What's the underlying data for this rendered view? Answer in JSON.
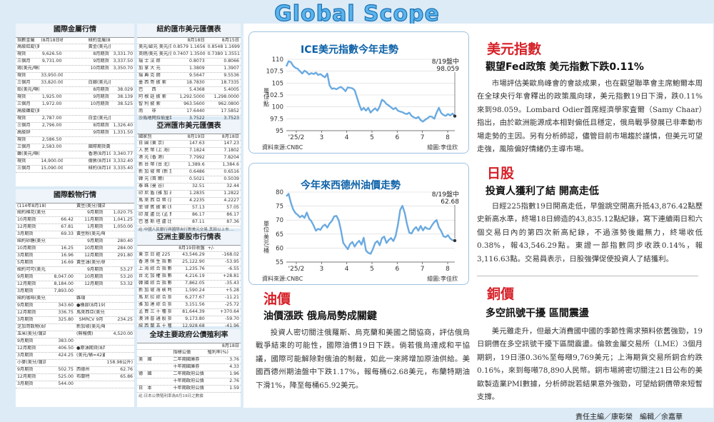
{
  "banner": "Global Scope",
  "tables": {
    "metals": {
      "title": "國際金屬行情",
      "header": [
        "指數金屬",
        "(8月18日收盤)",
        "",
        "紐約金屬(8月18日收盤)",
        ""
      ],
      "rows": [
        [
          "高級鋁錠(美元/噸)",
          "",
          "",
          "黃金(美元/盎司)",
          ""
        ],
        [
          "現貨",
          "9,626.50",
          "",
          "8月期貨",
          "3,331.70"
        ],
        [
          "三個月",
          "9,731.00",
          "",
          "9月期貨",
          "3,337.50"
        ],
        [
          "錫(美元/噸)",
          "",
          "",
          "10月期貨",
          "3,350.70"
        ],
        [
          "現貨",
          "33,950.00",
          "",
          "",
          ""
        ],
        [
          "三個月",
          "33,820.00",
          "",
          "白銀(美元/盎司)",
          ""
        ],
        [
          "鉛(美元/噸)",
          "",
          "",
          "8月期貨",
          "38.029"
        ],
        [
          "現貨",
          "1,925.00",
          "",
          "9月期貨",
          "38.139"
        ],
        [
          "三個月",
          "1,972.00",
          "",
          "10月期貨",
          "38.525"
        ],
        [
          "高級鎳錠(美元/噸)",
          "",
          "",
          "",
          ""
        ],
        [
          "現貨",
          "2,787.00",
          "",
          "白金(美元/盎司)",
          ""
        ],
        [
          "三個月",
          "2,796.00",
          "",
          "8月期貨",
          "1,326.40"
        ],
        [
          "高級鋅",
          "",
          "",
          "9月期貨",
          "1,331.50"
        ],
        [
          "現貨",
          "2,586.50",
          "",
          "",
          ""
        ],
        [
          "三個月",
          "2,583.00",
          "",
          "國際期貨黃金價",
          ""
        ],
        [
          "鎳(美元/噸)",
          "",
          "",
          "香港(8月19日)",
          "3,340.77"
        ],
        [
          "現貨",
          "14,900.00",
          "",
          "倫敦(8月18日)",
          "3,332.40"
        ],
        [
          "三個月",
          "15,090.00",
          "",
          "紐約(8月18日)",
          "3,335.40"
        ]
      ]
    },
    "grains": {
      "title": "國際穀物行情",
      "header": [
        "(114年8月18日收盤)",
        "",
        "黃豆(美分/蒲式耳)",
        ""
      ],
      "rows": [
        [
          "紐約棉花(美分/磅)",
          "",
          "9月期貨",
          "1,020.75"
        ],
        [
          "10月期貨",
          "66.42",
          "11月期貨",
          "1,041.25"
        ],
        [
          "12月期貨",
          "67.81",
          "1月期貨",
          "1,050.00"
        ],
        [
          "3月期貨",
          "69.33",
          "黃豆粉(美元/噸)",
          ""
        ],
        [
          "紐約砂糖(美分/磅)",
          "",
          "9月期貨",
          "280.40"
        ],
        [
          "10月期貨",
          "16.25",
          "10月期貨",
          "284.00"
        ],
        [
          "3月期貨",
          "16.96",
          "12月期貨",
          "291.80"
        ],
        [
          "5月期貨",
          "16.69",
          "黃豆油(美分/磅)",
          ""
        ],
        [
          "紐約可可(美元/噸)",
          "",
          "9月期貨",
          "53.27"
        ],
        [
          "9月期貨",
          "8,047.00",
          "10月期貨",
          "53.20"
        ],
        [
          "12月期貨",
          "8,184.00",
          "12月期貨",
          "53.32"
        ],
        [
          "3月期貨",
          "7,893.00",
          "",
          ""
        ],
        [
          "紐約咖啡(美分/磅)",
          "",
          "雜項",
          ""
        ],
        [
          "9月期貨",
          "343.60",
          "●橡膠(8月19日收盤)",
          ""
        ],
        [
          "12月期貨",
          "336.75",
          "馬來西亞(美分/公斤)",
          ""
        ],
        [
          "3月期貨",
          "325.80",
          "SMRCV 9月",
          "234.25"
        ],
        [
          "芝加哥穀物(8月18日收盤)",
          "",
          "新加坡(美元/噸)",
          ""
        ],
        [
          "玉米(美分/蒲式耳)",
          "",
          "(無報價)",
          "4,520.00"
        ],
        [
          "9月期貨",
          "383.00",
          "",
          ""
        ],
        [
          "12月期貨",
          "406.50",
          "●原油期貨(8月19日盤中)",
          ""
        ],
        [
          "3月期貨",
          "424.25",
          "(美元/桶=42蓋耳加侖)",
          ""
        ],
        [
          "小麥(美分/蒲式耳)",
          "",
          "",
          "158.98公升)"
        ],
        [
          "9月期貨",
          "502.75",
          "西德州",
          "62.76"
        ],
        [
          "12月期貨",
          "525.00",
          "布蘭特",
          "65.86"
        ],
        [
          "3月期貨",
          "544.00",
          "",
          ""
        ]
      ]
    },
    "fx_ny": {
      "title": "紐約匯市美元匯價表",
      "header": [
        "",
        "8月18日",
        "8月15日"
      ],
      "rows": [
        [
          "美元/歐元 美元/英鎊",
          "0.8579 1.1656",
          "0.8548 1.1699"
        ],
        [
          "英鎊/美元 美元/澳",
          "0.7407 1.3500",
          "0.7380 1.3551"
        ],
        [
          "瑞 士 法 郎",
          "0.8073",
          "0.8066"
        ],
        [
          "加 拿 大 元",
          "1.3809",
          "1.3907"
        ],
        [
          "瑞 典 克 朗",
          "9.5647",
          "9.5536"
        ],
        [
          "墨 西 哥 披 索",
          "18.7830",
          "18.7335"
        ],
        [
          "巴　　西",
          "5.4368",
          "5.4005"
        ],
        [
          "阿 根 廷 披 索",
          "1,292.5000",
          "1,298.0000"
        ],
        [
          "智 利 披 索",
          "963.5600",
          "962.0800"
        ],
        [
          "南　　非",
          "17.6440",
          "17.5852"
        ],
        [
          "沙烏地阿拉伯里亞",
          "3.7522",
          "3.7523"
        ]
      ]
    },
    "fx_asia": {
      "title": "亞洲匯市美元匯價表",
      "header": [
        "國家別",
        "8月19日",
        "8月18日"
      ],
      "rows": [
        [
          "日 圓 (東 京)",
          "147.63",
          "147.23"
        ],
        [
          "人 民 幣 (上 海)",
          "7.1824",
          "7.1802"
        ],
        [
          "港 元 (香 港)",
          "7.7992",
          "7.8204"
        ],
        [
          "新 台 幣 (台 北)",
          "1,389.6",
          "1,384.6"
        ],
        [
          "新 加 坡 幣 (新 加 坡)",
          "0.6486",
          "0.6516"
        ],
        [
          "韓 元 (首 爾)",
          "0.5021",
          "0.5039"
        ],
        [
          "泰 銖 (曼 谷)",
          "32.51",
          "32.44"
        ],
        [
          "印 尼 盾 (雅 加 達)",
          "1.2835",
          "1.2822"
        ],
        [
          "馬 來 西 亞 幣 (吉 隆 坡)",
          "4.2235",
          "4.2227"
        ],
        [
          "菲 律 賓 披 索 (馬 尼 拉)",
          "57.13",
          "57.05"
        ],
        [
          "印 度 盧 比 (孟 買)",
          "86.17",
          "86.17"
        ],
        [
          "巴 基 斯 坦 盧 比 (喀 拉 蚩)",
          "87.11",
          "87.36"
        ]
      ],
      "note": "註:中國人民銀行與國際央行對美元交易,其餘以上市...."
    },
    "stocks_asia": {
      "title": "亞洲主要股市行情表",
      "header": [
        "",
        "8月19日收盤",
        "+/-"
      ],
      "rows": [
        [
          "東 京 日 經 225 指 數",
          "43,546.29",
          "-168.02"
        ],
        [
          "香 港 恒 生 指 數",
          "25,122.90",
          "-53.95"
        ],
        [
          "上 海 綜 合 指 數",
          "1,235.76",
          "-6.55"
        ],
        [
          "台 北 加 權 指 數",
          "4,216.19",
          "+28.81"
        ],
        [
          "韓 國 綜 合 指 數",
          "7,862.05",
          "-35.43"
        ],
        [
          "新 加 坡 海 峽 時 報 指 數",
          "1,590.24",
          "+5.28"
        ],
        [
          "馬 尼 拉 綜 合 指 數",
          "6,277.67",
          "-11.21"
        ],
        [
          "雅 加 達 綜 合 指 數",
          "3,151.56",
          "-25.72"
        ],
        [
          "孟 買 三 十 種 指 數",
          "81,644.39",
          "+370.64"
        ],
        [
          "澳 洲 普 通 股 指 數",
          "9,173.80",
          "-59.70"
        ],
        [
          "紐 西 蘭 五 十 種 指 數",
          "12,928.68",
          "-41.96"
        ]
      ]
    },
    "bonds": {
      "title": "全球主要政府公債殖利率",
      "header": [
        "",
        "8月18日"
      ],
      "sub": [
        "",
        "指標公債",
        "殖利率(%)"
      ],
      "rows": [
        [
          "美　國",
          "二年期國庫券",
          "3.76"
        ],
        [
          "",
          "十年期國庫券",
          "4.33"
        ],
        [
          "德　國",
          "二年期政府公債",
          "1.96"
        ],
        [
          "",
          "十年期政府公債",
          "2.76"
        ],
        [
          "日　本",
          "十年期政府公債",
          "1.59"
        ]
      ],
      "note": "註:日本公債殖利率為8月19日之數據"
    }
  },
  "chart1": {
    "title": "ICE美元指數今年走勢",
    "annotation_date": "8/19盤中",
    "annotation_value": "98.059",
    "source": "資料來源:CNBC",
    "credit": "繪圖:李佳欣"
  },
  "chart2": {
    "title": "今年來西德州油價走勢",
    "annotation_date": "8/19盤中",
    "annotation_value": "62.68",
    "source": "資料來源:CNBC",
    "credit": "繪圖:李佳欣"
  },
  "chart_data": [
    {
      "type": "line",
      "title": "ICE美元指數今年走勢",
      "ylabel": "單位:點",
      "ylim": [
        95.0,
        110.0
      ],
      "yticks": [
        110.0,
        107.5,
        105.0,
        102.5,
        100.0,
        97.5,
        95.0
      ],
      "xticks": [
        "'25/2",
        "3",
        "4",
        "5",
        "6",
        "7",
        "8"
      ],
      "values": [
        108.5,
        109.6,
        109.4,
        108.6,
        108.2,
        108.0,
        107.5,
        107.0,
        107.6,
        107.3,
        106.8,
        107.1,
        106.9,
        107.2,
        106.7,
        106.9,
        106.5,
        106.2,
        107.0,
        104.5,
        103.8,
        103.9,
        103.7,
        104.0,
        104.2,
        103.8,
        103.3,
        104.1,
        104.0,
        103.9,
        103.5,
        102.0,
        100.5,
        99.3,
        99.8,
        99.2,
        99.8,
        98.8,
        99.3,
        99.7,
        99.2,
        100.1,
        101.5,
        101.2,
        100.6,
        100.3,
        99.9,
        99.5,
        99.8,
        99.2,
        99.0,
        98.9,
        98.6,
        98.5,
        98.8,
        98.1,
        97.8,
        97.6,
        97.9,
        97.2,
        96.9,
        97.3,
        97.6,
        98.0,
        97.9,
        97.5,
        98.8,
        99.8,
        98.7,
        98.3,
        98.1,
        98.5,
        98.2,
        98.6,
        98.059
      ]
    },
    {
      "type": "line",
      "title": "今年來西德州油價走勢",
      "ylabel": "單位:美元/桶",
      "ylim": [
        55,
        80
      ],
      "yticks": [
        80,
        75,
        70,
        65,
        60,
        55
      ],
      "xticks": [
        "'25/2",
        "3",
        "4",
        "5",
        "6",
        "7",
        "8"
      ],
      "values": [
        78.5,
        79.4,
        76.2,
        73.8,
        72.5,
        71.9,
        71.0,
        71.6,
        70.8,
        72.7,
        70.5,
        69.6,
        68.0,
        66.2,
        66.9,
        66.5,
        67.8,
        68.4,
        67.3,
        68.8,
        69.7,
        71.3,
        71.5,
        69.9,
        66.4,
        61.9,
        60.7,
        59.6,
        61.4,
        62.2,
        60.5,
        61.8,
        62.6,
        61.2,
        63.7,
        59.1,
        58.3,
        57.9,
        59.6,
        61.8,
        62.5,
        61.0,
        63.5,
        64.1,
        61.8,
        62.9,
        63.6,
        62.5,
        64.3,
        68.3,
        73.6,
        75.1,
        72.6,
        68.6,
        65.5,
        65.2,
        66.7,
        67.5,
        66.2,
        67.9,
        66.3,
        67.5,
        66.9,
        66.8,
        68.2,
        69.3,
        70.0,
        67.4,
        66.1,
        64.2,
        63.9,
        64.6,
        63.4,
        62.8,
        62.68
      ]
    }
  ],
  "articles": [
    {
      "heading": "美元指數",
      "subheading": "觀望Fed政策 美元指數下跌0.11%",
      "body": "市場評估美歐烏峰會的會談成果，也在觀望聯準會主席鮑爾本周在全球央行年會釋出的政策風向球，美元指數19日下滑，跌0.11%來到98.059。Lombard Odier首席經濟學家査爾（Samy Chaar）指出，由於歐洲能源成本相對偏低且穩定，俄烏戰爭發展已非牽動市場走勢的主因。另有分析師認，儘管目前市場趨於謹慎，但美元可望走強，風險偏好情緒仍主導市場。"
    },
    {
      "heading": "日股",
      "subheading": "投資人獲利了結 開高走低",
      "body": "日經225指數19日開高走低，早盤跳空開高升抵43,876.42點歷史新高水準，終場18日締造的43,835.12點紀錄，寫下連續兩日和六個交易日內的第四次新高紀錄，不過漲勢後繼無力，終場收低0.38%，報43,546.29點。東證一部指數同步收跌0.14%，報3,116.63點。交易員表示，日股強彈促使投資人了結獲利。"
    },
    {
      "heading": "油價",
      "subheading": "油價漲跌 俄烏局勢成關鍵",
      "body": "投資人密切關注俄羅斯、烏克蘭和美國之間協商，評估俄烏戰爭結束的可能性，國際油價19日下跌。倘若俄烏達成和平協議，國際可能解除對俄油的制裁，如此一來將增加原油供給。美國西德州期油盤中下跌1.17%，報每桶62.68美元，布蘭特期油下滑1%，降至每桶65.92美元。"
    },
    {
      "heading": "銅價",
      "subheading": "多空訊號干擾 區間震盪",
      "body": "美元雖走升，但最大消費國中國的季節性需求預料依舊強勁，19日銅價在多空訊號干擾下區間震盪。倫敦金屬交易所（LME）3個月期銅，19日漲0.36%至每噸9,769美元；上海期貨交易所銅合約跌0.16%，來到每噸78,890人民幣。銅市場將密切關注21日公布的美歐製造業PMI數據，分析師說若結果意外強勁，可望給銅價帶來短暫支撐。"
    }
  ],
  "footer": {
    "text": "責任主編／康彰榮　編輯／余嘉華"
  },
  "colors": {
    "banner": "#5ab4ec",
    "heading": "#d62027",
    "chart_line": "#6aaae0",
    "chart_title": "#0c61a8",
    "background": "#dcebf6"
  }
}
